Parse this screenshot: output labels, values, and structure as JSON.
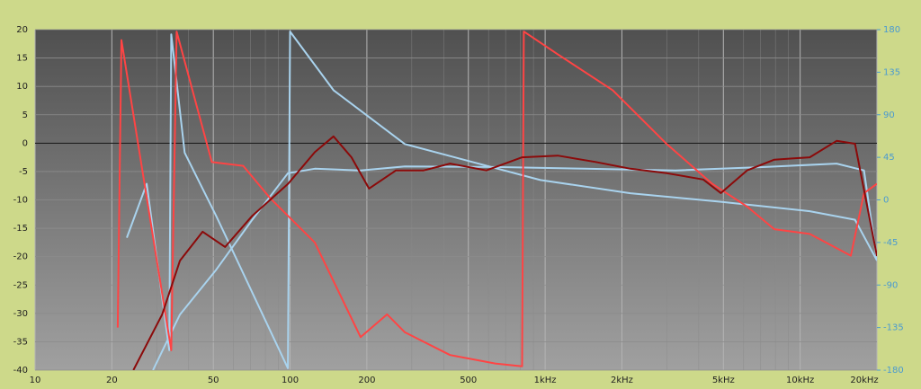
{
  "chart_data": {
    "type": "line",
    "xscale": "log",
    "grid": true,
    "zero_line": true,
    "xlim": [
      10,
      20000
    ],
    "xticks": [
      10,
      20,
      50,
      100,
      200,
      500,
      {
        "value": 1000,
        "label": "1kHz"
      },
      {
        "value": 2000,
        "label": "2kHz"
      },
      {
        "value": 5000,
        "label": "5kHz"
      },
      {
        "value": 10000,
        "label": "10kHz"
      },
      {
        "value": 20000,
        "label": "20kHz"
      }
    ],
    "ylim": [
      -40,
      20
    ],
    "yticks": [
      20,
      15,
      10,
      5,
      0,
      -5,
      -10,
      -15,
      -20,
      -25,
      -30,
      -35,
      -40
    ],
    "y2lim": [
      -180,
      180
    ],
    "y2ticks": [
      180,
      135,
      90,
      45,
      0,
      -45,
      -90,
      -135,
      -180
    ],
    "series": [
      {
        "color": "#a9d3ee",
        "x": [
          29,
          37,
          51.3,
          71.1,
          98,
          125,
          189,
          282,
          637,
          1430,
          3250,
          7270,
          13900,
          17800,
          20000
        ],
        "values": [
          -40,
          -30.2,
          -22.3,
          -13.5,
          -5.3,
          -4.5,
          -4.8,
          -4.1,
          -4.2,
          -4.5,
          -4.8,
          -4.2,
          -3.6,
          -4.8,
          -20.7
        ]
      },
      {
        "color": "#a9d3ee",
        "axis": "y2",
        "x": [
          22.9,
          27.4,
          33.6,
          34.2,
          38.6,
          51.3,
          98,
          100,
          148,
          282,
          958,
          2160,
          4890,
          10900,
          16400,
          20000
        ],
        "values": [
          -40,
          17,
          -159,
          175,
          50,
          -17,
          -178,
          178,
          116,
          59,
          21,
          7,
          -2,
          -12,
          -21,
          -64
        ]
      },
      {
        "color": "#ff4444",
        "axis": "y2",
        "x": [
          21.1,
          21.8,
          34.2,
          35.9,
          49.3,
          65.5,
          83.4,
          125,
          189,
          240,
          282,
          424,
          637,
          812,
          825,
          1120,
          1840,
          3000,
          4520,
          6190,
          7920,
          10900,
          15800,
          17800,
          20000
        ],
        "values": [
          -135,
          169,
          -159,
          178,
          40,
          36,
          2,
          -45,
          -145,
          -121,
          -140,
          -164,
          -173,
          -176,
          178,
          154,
          116,
          59,
          17,
          -7,
          -31,
          -36,
          -59,
          7,
          17
        ]
      },
      {
        "color": "#8b0a0a",
        "x": [
          24.3,
          31.5,
          37,
          45.4,
          55.6,
          71.1,
          98,
          125,
          148,
          174,
          204,
          260,
          334,
          424,
          588,
          812,
          1120,
          1570,
          2160,
          3000,
          4170,
          4890,
          6190,
          7920,
          10900,
          13900,
          16400,
          20000
        ],
        "values": [
          -40,
          -30.2,
          -20.7,
          -15.6,
          -18.3,
          -12.8,
          -7.2,
          -1.6,
          1.2,
          -2.5,
          -8,
          -4.8,
          -4.8,
          -3.6,
          -4.8,
          -2.5,
          -2.2,
          -3.3,
          -4.5,
          -5.3,
          -6.4,
          -8.8,
          -4.8,
          -2.9,
          -2.5,
          0.4,
          -0.1,
          -19.9
        ]
      }
    ]
  }
}
